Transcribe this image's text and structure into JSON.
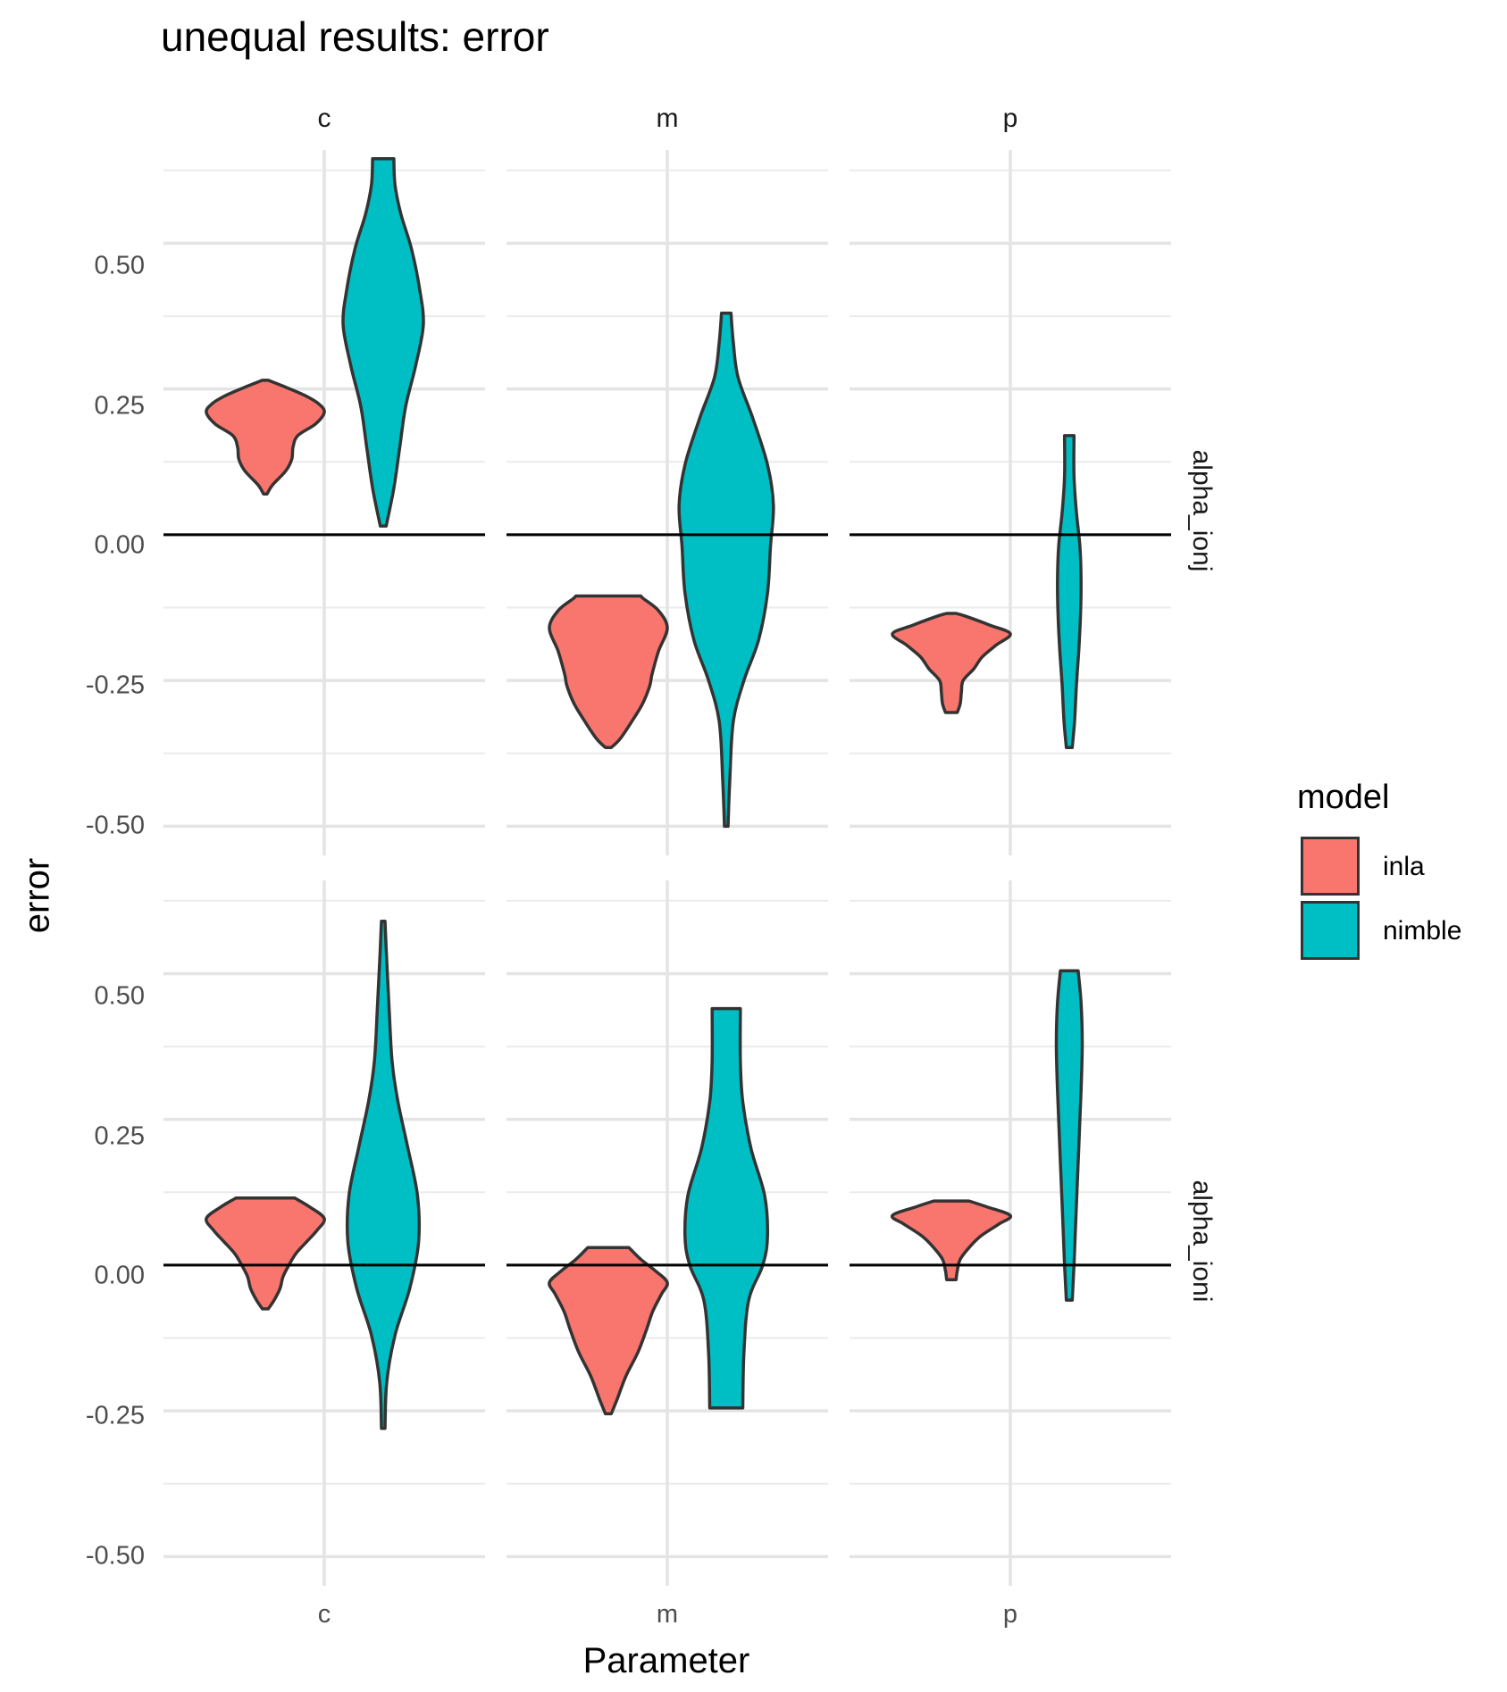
{
  "chart_data": {
    "type": "violin",
    "title": "unequal results: error",
    "xlabel": "Parameter",
    "ylabel": "error",
    "ylim": [
      -0.55,
      0.66
    ],
    "yticks": [
      -0.5,
      -0.25,
      0.0,
      0.25,
      0.5
    ],
    "ytick_labels": [
      "-0.50",
      "-0.25",
      "0.00",
      "0.25",
      "0.50"
    ],
    "reference_line": 0.0,
    "facet_cols": [
      "c",
      "m",
      "p"
    ],
    "facet_rows": [
      "alpha_ionj",
      "alpha_ioni"
    ],
    "legend": {
      "title": "model",
      "position": "right",
      "entries": [
        {
          "label": "inla",
          "color": "#F8766D"
        },
        {
          "label": "nimble",
          "color": "#00BFC4"
        }
      ]
    },
    "grid": true,
    "violins": [
      {
        "row": "alpha_ionj",
        "col": "c",
        "model": "inla",
        "min": 0.07,
        "max": 0.265,
        "profile": [
          [
            0.07,
            0.02
          ],
          [
            0.085,
            0.12
          ],
          [
            0.11,
            0.35
          ],
          [
            0.13,
            0.45
          ],
          [
            0.15,
            0.47
          ],
          [
            0.17,
            0.55
          ],
          [
            0.19,
            0.85
          ],
          [
            0.21,
            1.0
          ],
          [
            0.225,
            0.9
          ],
          [
            0.24,
            0.65
          ],
          [
            0.255,
            0.3
          ],
          [
            0.265,
            0.05
          ]
        ]
      },
      {
        "row": "alpha_ionj",
        "col": "c",
        "model": "nimble",
        "min": 0.015,
        "max": 0.645,
        "profile": [
          [
            0.015,
            0.05
          ],
          [
            0.08,
            0.18
          ],
          [
            0.15,
            0.28
          ],
          [
            0.22,
            0.38
          ],
          [
            0.29,
            0.55
          ],
          [
            0.36,
            0.68
          ],
          [
            0.42,
            0.62
          ],
          [
            0.49,
            0.48
          ],
          [
            0.55,
            0.3
          ],
          [
            0.6,
            0.2
          ],
          [
            0.645,
            0.18
          ]
        ]
      },
      {
        "row": "alpha_ionj",
        "col": "m",
        "model": "inla",
        "min": -0.365,
        "max": -0.105,
        "profile": [
          [
            -0.365,
            0.05
          ],
          [
            -0.35,
            0.2
          ],
          [
            -0.32,
            0.4
          ],
          [
            -0.29,
            0.58
          ],
          [
            -0.26,
            0.7
          ],
          [
            -0.24,
            0.74
          ],
          [
            -0.2,
            0.85
          ],
          [
            -0.16,
            1.0
          ],
          [
            -0.13,
            0.85
          ],
          [
            -0.11,
            0.6
          ],
          [
            -0.105,
            0.55
          ]
        ]
      },
      {
        "row": "alpha_ionj",
        "col": "m",
        "model": "nimble",
        "min": -0.5,
        "max": 0.38,
        "profile": [
          [
            -0.5,
            0.02
          ],
          [
            -0.42,
            0.06
          ],
          [
            -0.32,
            0.12
          ],
          [
            -0.25,
            0.3
          ],
          [
            -0.18,
            0.55
          ],
          [
            -0.1,
            0.7
          ],
          [
            -0.02,
            0.75
          ],
          [
            0.05,
            0.8
          ],
          [
            0.12,
            0.7
          ],
          [
            0.2,
            0.45
          ],
          [
            0.27,
            0.2
          ],
          [
            0.33,
            0.12
          ],
          [
            0.38,
            0.08
          ]
        ]
      },
      {
        "row": "alpha_ionj",
        "col": "p",
        "model": "inla",
        "min": -0.305,
        "max": -0.135,
        "profile": [
          [
            -0.305,
            0.1
          ],
          [
            -0.29,
            0.15
          ],
          [
            -0.27,
            0.17
          ],
          [
            -0.25,
            0.2
          ],
          [
            -0.23,
            0.38
          ],
          [
            -0.21,
            0.52
          ],
          [
            -0.19,
            0.75
          ],
          [
            -0.17,
            1.0
          ],
          [
            -0.155,
            0.65
          ],
          [
            -0.14,
            0.25
          ],
          [
            -0.135,
            0.08
          ]
        ]
      },
      {
        "row": "alpha_ionj",
        "col": "p",
        "model": "nimble",
        "min": -0.365,
        "max": 0.17,
        "profile": [
          [
            -0.365,
            0.05
          ],
          [
            -0.32,
            0.09
          ],
          [
            -0.26,
            0.12
          ],
          [
            -0.2,
            0.16
          ],
          [
            -0.14,
            0.19
          ],
          [
            -0.08,
            0.2
          ],
          [
            -0.02,
            0.18
          ],
          [
            0.04,
            0.12
          ],
          [
            0.1,
            0.08
          ],
          [
            0.17,
            0.08
          ]
        ]
      },
      {
        "row": "alpha_ioni",
        "col": "c",
        "model": "inla",
        "min": -0.075,
        "max": 0.115,
        "profile": [
          [
            -0.075,
            0.05
          ],
          [
            -0.06,
            0.15
          ],
          [
            -0.04,
            0.25
          ],
          [
            -0.02,
            0.3
          ],
          [
            0.0,
            0.4
          ],
          [
            0.02,
            0.52
          ],
          [
            0.04,
            0.7
          ],
          [
            0.06,
            0.88
          ],
          [
            0.08,
            1.0
          ],
          [
            0.1,
            0.75
          ],
          [
            0.115,
            0.5
          ]
        ]
      },
      {
        "row": "alpha_ioni",
        "col": "c",
        "model": "nimble",
        "min": -0.28,
        "max": 0.59,
        "profile": [
          [
            -0.28,
            0.02
          ],
          [
            -0.2,
            0.06
          ],
          [
            -0.12,
            0.2
          ],
          [
            -0.04,
            0.45
          ],
          [
            0.04,
            0.6
          ],
          [
            0.12,
            0.58
          ],
          [
            0.2,
            0.42
          ],
          [
            0.28,
            0.25
          ],
          [
            0.35,
            0.15
          ],
          [
            0.44,
            0.1
          ],
          [
            0.52,
            0.06
          ],
          [
            0.59,
            0.02
          ]
        ]
      },
      {
        "row": "alpha_ioni",
        "col": "m",
        "model": "inla",
        "min": -0.255,
        "max": 0.03,
        "profile": [
          [
            -0.255,
            0.05
          ],
          [
            -0.23,
            0.15
          ],
          [
            -0.19,
            0.3
          ],
          [
            -0.15,
            0.5
          ],
          [
            -0.11,
            0.65
          ],
          [
            -0.08,
            0.75
          ],
          [
            -0.05,
            0.9
          ],
          [
            -0.03,
            1.0
          ],
          [
            -0.01,
            0.8
          ],
          [
            0.01,
            0.55
          ],
          [
            0.03,
            0.35
          ]
        ]
      },
      {
        "row": "alpha_ioni",
        "col": "m",
        "model": "nimble",
        "min": -0.245,
        "max": 0.44,
        "profile": [
          [
            -0.245,
            0.28
          ],
          [
            -0.15,
            0.3
          ],
          [
            -0.06,
            0.38
          ],
          [
            0.0,
            0.62
          ],
          [
            0.05,
            0.7
          ],
          [
            0.12,
            0.65
          ],
          [
            0.2,
            0.42
          ],
          [
            0.28,
            0.28
          ],
          [
            0.35,
            0.24
          ],
          [
            0.44,
            0.24
          ]
        ]
      },
      {
        "row": "alpha_ioni",
        "col": "p",
        "model": "inla",
        "min": -0.025,
        "max": 0.11,
        "profile": [
          [
            -0.025,
            0.08
          ],
          [
            -0.01,
            0.1
          ],
          [
            0.01,
            0.15
          ],
          [
            0.03,
            0.3
          ],
          [
            0.05,
            0.5
          ],
          [
            0.07,
            0.8
          ],
          [
            0.085,
            1.0
          ],
          [
            0.1,
            0.6
          ],
          [
            0.11,
            0.3
          ]
        ]
      },
      {
        "row": "alpha_ioni",
        "col": "p",
        "model": "nimble",
        "min": -0.06,
        "max": 0.505,
        "profile": [
          [
            -0.06,
            0.05
          ],
          [
            0.0,
            0.08
          ],
          [
            0.1,
            0.12
          ],
          [
            0.2,
            0.16
          ],
          [
            0.3,
            0.2
          ],
          [
            0.38,
            0.22
          ],
          [
            0.45,
            0.2
          ],
          [
            0.505,
            0.15
          ]
        ]
      }
    ]
  }
}
